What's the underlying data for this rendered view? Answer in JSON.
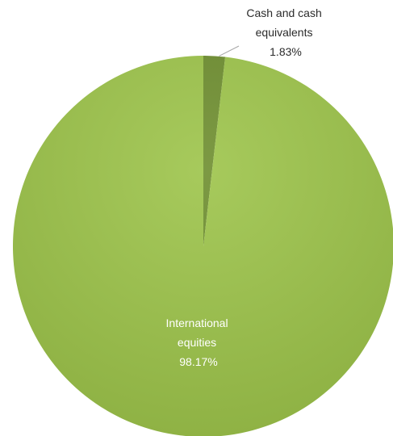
{
  "chart_data": {
    "type": "pie",
    "categories": [
      "Cash and cash equivalents",
      "International equities"
    ],
    "values": [
      1.83,
      98.17
    ],
    "data_labels": [
      {
        "line1": "Cash and cash",
        "line2": "equivalents",
        "value_text": "1.83%"
      },
      {
        "line1": "International",
        "line2": "equities",
        "value_text": "98.17%"
      }
    ],
    "colors": [
      "#6e8e2f",
      "#9dc44a"
    ],
    "title": "",
    "legend": "none"
  }
}
